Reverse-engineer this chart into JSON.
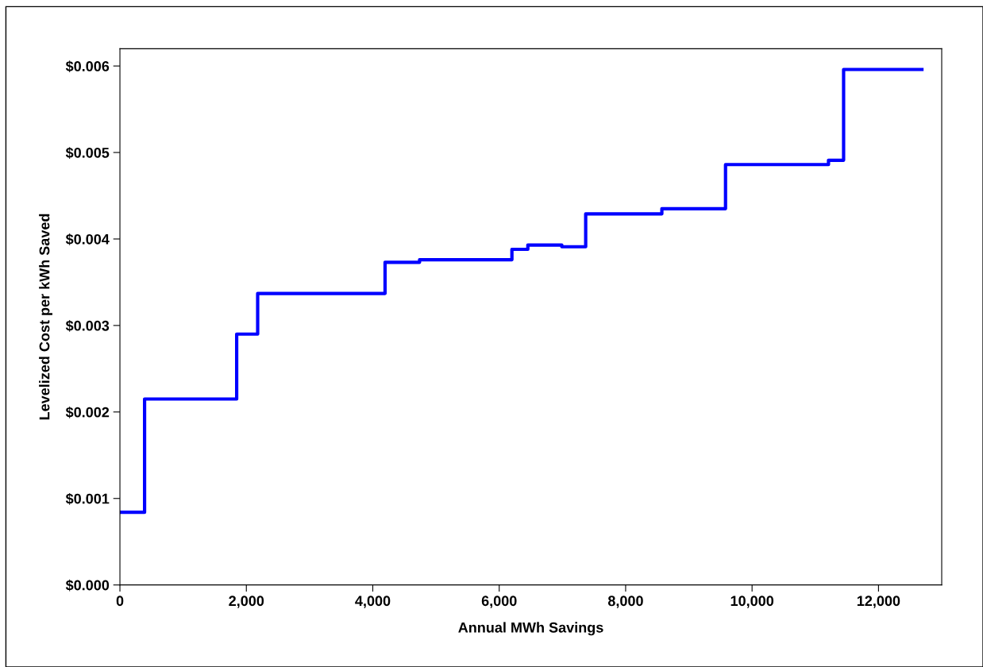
{
  "chart_data": {
    "type": "step",
    "xlabel": "Annual MWh Savings",
    "ylabel": "Levelized Cost per kWh Saved",
    "x": [
      0,
      390,
      1847,
      2179,
      4194,
      4740,
      6201,
      6453,
      6990,
      7368,
      8573,
      9580,
      11209,
      11448,
      12687
    ],
    "series": [
      {
        "color": "#0000ff",
        "values": [
          0.00084,
          0.00215,
          0.0029,
          0.00337,
          0.00373,
          0.00376,
          0.00388,
          0.00393,
          0.00391,
          0.00429,
          0.00435,
          0.00486,
          0.00491,
          0.00596,
          0.00596
        ]
      }
    ],
    "xlim": [
      0,
      13000
    ],
    "xticks": [
      {
        "value": 0,
        "label": "0"
      },
      {
        "value": 2000,
        "label": "2,000"
      },
      {
        "value": 4000,
        "label": "4,000"
      },
      {
        "value": 6000,
        "label": "6,000"
      },
      {
        "value": 8000,
        "label": "8,000"
      },
      {
        "value": 10000,
        "label": "10,000"
      },
      {
        "value": 12000,
        "label": "12,000"
      }
    ],
    "ylim": [
      0,
      0.0062
    ],
    "yticks": [
      {
        "value": 0,
        "label": "$0.000"
      },
      {
        "value": 0.001,
        "label": "$0.001"
      },
      {
        "value": 0.002,
        "label": "$0.002"
      },
      {
        "value": 0.003,
        "label": "$0.003"
      },
      {
        "value": 0.004,
        "label": "$0.004"
      },
      {
        "value": 0.005,
        "label": "$0.005"
      },
      {
        "value": 0.006,
        "label": "$0.006"
      }
    ],
    "grid": false,
    "line_style": "solid"
  }
}
